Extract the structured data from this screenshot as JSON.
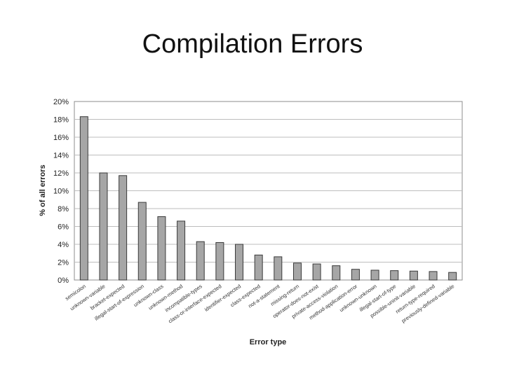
{
  "title": "Compilation Errors",
  "chart_data": {
    "type": "bar",
    "xlabel": "Error type",
    "ylabel": "% of all errors",
    "ylim": [
      0,
      20
    ],
    "y_ticks": [
      "0%",
      "2%",
      "4%",
      "6%",
      "8%",
      "10%",
      "12%",
      "14%",
      "16%",
      "18%",
      "20%"
    ],
    "grid": true,
    "categories": [
      "semicolon",
      "unknown-variable",
      "bracket-expected",
      "illegal-start-of-expression",
      "unknown-class",
      "unknown-method",
      "incompatible-types",
      "class-or-interface-expected",
      "identifier-expected",
      "class-expected",
      "not-a-statement",
      "missing-return",
      "operator-does-not-exist",
      "private-access-violation",
      "method-application-error",
      "unknown-unknown",
      "illegal-start-of-type",
      "possible-uninit-variable",
      "return-type-required",
      "previously-defined-variable"
    ],
    "values": [
      18.3,
      12.0,
      11.7,
      8.7,
      7.1,
      6.6,
      4.3,
      4.2,
      4.0,
      2.8,
      2.6,
      1.9,
      1.8,
      1.6,
      1.2,
      1.1,
      1.05,
      1.0,
      0.95,
      0.85
    ],
    "bar_color": "#a6a6a6"
  }
}
